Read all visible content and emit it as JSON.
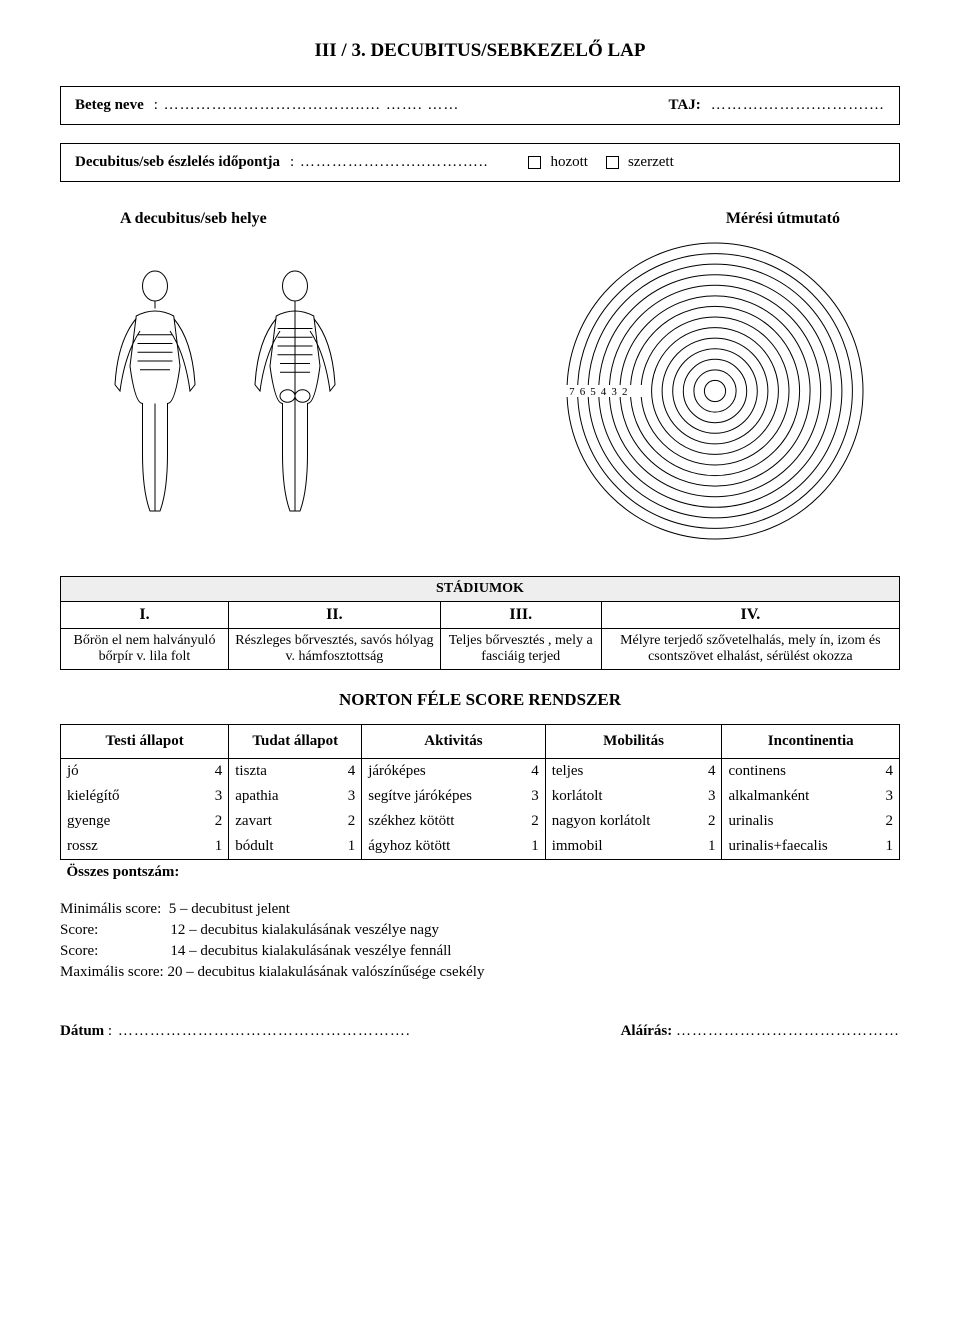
{
  "title": "III / 3. DECUBITUS/SEBKEZELŐ LAP",
  "box1": {
    "label_beteg": "Beteg neve",
    "dots_beteg": ": ………………………………..… ……. ……",
    "label_taj": "TAJ:",
    "dots_taj": "……….……….……….…"
  },
  "box2": {
    "label": "Decubitus/seb észlelés időpontja",
    "dots": ": …………….……..…….…..",
    "cb1": "hozott",
    "cb2": "szerzett"
  },
  "section": {
    "left": "A decubitus/seb helye",
    "right": "Mérési útmutató"
  },
  "rings": {
    "labels": [
      "7",
      "6",
      "5",
      "4",
      "3",
      "2"
    ],
    "count": 14
  },
  "stadium": {
    "header": "STÁDIUMOK",
    "cols": [
      "I.",
      "II.",
      "III.",
      "IV."
    ],
    "desc": [
      "Bőrön el nem halványuló bőrpír v. lila folt",
      "Részleges bőrvesztés, savós hólyag v. hámfosztottság",
      "Teljes bőrvesztés , mely a fasciáig terjed",
      "Mélyre terjedő szővetelhalás, mely ín, izom és csontszövet elhalást, sérülést okozza"
    ]
  },
  "norton": {
    "title": "NORTON FÉLE SCORE RENDSZER",
    "headers": [
      "Testi állapot",
      "Tudat állapot",
      "Aktivitás",
      "Mobilitás",
      "Incontinentia"
    ],
    "rows": [
      [
        [
          "jó",
          "4"
        ],
        [
          "tiszta",
          "4"
        ],
        [
          "járóképes",
          "4"
        ],
        [
          "teljes",
          "4"
        ],
        [
          "continens",
          "4"
        ]
      ],
      [
        [
          "kielégítő",
          "3"
        ],
        [
          "apathia",
          "3"
        ],
        [
          "segítve járóképes",
          "3"
        ],
        [
          "korlátolt",
          "3"
        ],
        [
          "alkalmanként",
          "3"
        ]
      ],
      [
        [
          "gyenge",
          "2"
        ],
        [
          "zavart",
          "2"
        ],
        [
          "székhez kötött",
          "2"
        ],
        [
          "nagyon korlátolt",
          "2"
        ],
        [
          "urinalis",
          "2"
        ]
      ],
      [
        [
          "rossz",
          "1"
        ],
        [
          "bódult",
          "1"
        ],
        [
          "ágyhoz kötött",
          "1"
        ],
        [
          "immobil",
          "1"
        ],
        [
          "urinalis+faecalis",
          "1"
        ]
      ]
    ],
    "osszes": "Összes pontszám:"
  },
  "notes": {
    "l1a": "Minimális score:",
    "l1b": "5 – decubitust jelent",
    "l2a": "Score:",
    "l2b": "12 – decubitus kialakulásának veszélye nagy",
    "l3a": "Score:",
    "l3b": "14 – decubitus kialakulásának veszélye fennáll",
    "l4a": "Maximális score:",
    "l4b": "20 – decubitus kialakulásának valószínűsége csekély"
  },
  "footer": {
    "datum": "Dátum",
    "datum_dots": ": ……………………………………………….",
    "alairas": "Aláírás:",
    "alairas_dots": "……………………………………"
  },
  "colors": {
    "line": "#000000",
    "bg_header": "#eeeeee"
  }
}
